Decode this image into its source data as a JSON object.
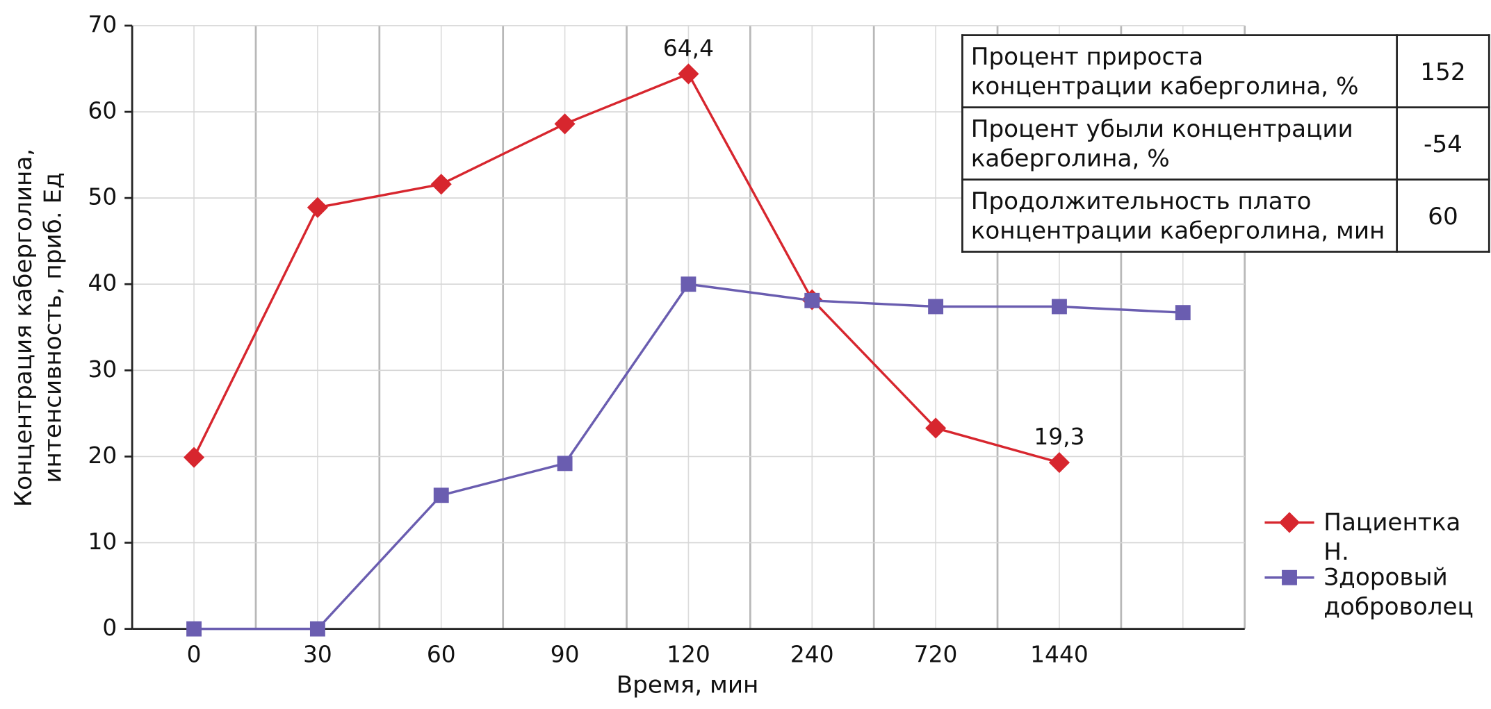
{
  "chart_data": {
    "type": "line",
    "categories": [
      "0",
      "30",
      "60",
      "90",
      "120",
      "240",
      "720",
      "1440",
      null
    ],
    "x_label": "Время, мин",
    "y_label": "Концентрация каберголина, интенсивность, приб. Ед",
    "ylim": [
      0,
      70
    ],
    "yticks": [
      0,
      10,
      20,
      30,
      40,
      50,
      60,
      70
    ],
    "grid": true,
    "legend": "right",
    "series": [
      {
        "name": "Пациентка Н.",
        "color": "#d7262e",
        "marker": "diamond",
        "values": [
          19.9,
          48.9,
          51.6,
          58.6,
          64.4,
          38.2,
          23.3,
          19.3,
          null
        ],
        "value_labels": [
          null,
          null,
          null,
          null,
          "64,4",
          null,
          null,
          "19,3",
          null
        ]
      },
      {
        "name": "Здоровый доброволец",
        "color": "#6a5db0",
        "marker": "square",
        "values": [
          0,
          0,
          15.5,
          19.2,
          40,
          38.1,
          37.4,
          37.4,
          36.7
        ]
      }
    ],
    "table": {
      "rows": [
        [
          "Процент прироста концентрации каберголина, %",
          "152"
        ],
        [
          "Процент убыли концентрации каберголина, %",
          "-54"
        ],
        [
          "Продолжительность плато концентрации каберголина, мин",
          "60"
        ]
      ]
    }
  }
}
